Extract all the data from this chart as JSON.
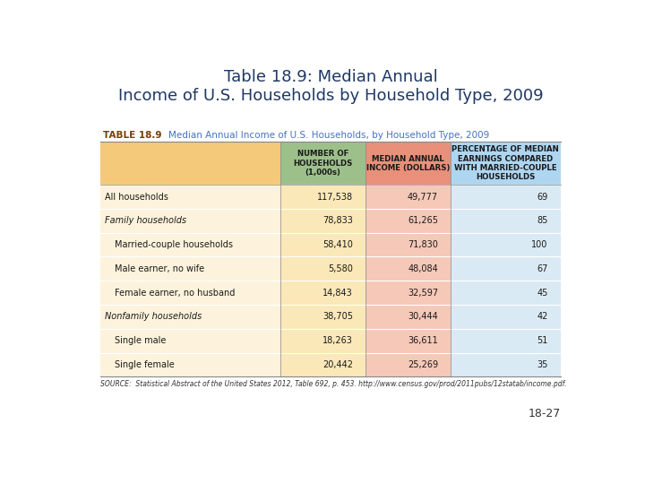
{
  "title_line1": "Table 18.9: Median Annual",
  "title_line2": "Income of U.S. Households by Household Type, 2009",
  "title_color": "#1F3864",
  "table_label_bold": "TABLE 18.9",
  "table_label_text_color": "#4472C4",
  "table_label_bold_color": "#7B3F00",
  "col_headers": [
    "",
    "NUMBER OF\nHOUSEHOLDS\n(1,000s)",
    "MEDIAN ANNUAL\nINCOME (DOLLARS)",
    "PERCENTAGE OF MEDIAN\nEARNINGS COMPARED\nWITH MARRIED-COUPLE\nHOUSEHOLDS"
  ],
  "col_header_bg_colors": [
    "#F5C97A",
    "#9DC08B",
    "#E8907A",
    "#AED6F1"
  ],
  "rows": [
    [
      "All households",
      "117,538",
      "49,777",
      "69"
    ],
    [
      "Family households",
      "78,833",
      "61,265",
      "85"
    ],
    [
      "  Married-couple households",
      "58,410",
      "71,830",
      "100"
    ],
    [
      "  Male earner, no wife",
      "5,580",
      "48,084",
      "67"
    ],
    [
      "  Female earner, no husband",
      "14,843",
      "32,597",
      "45"
    ],
    [
      "Nonfamily households",
      "38,705",
      "30,444",
      "42"
    ],
    [
      "  Single male",
      "18,263",
      "36,611",
      "51"
    ],
    [
      "  Single female",
      "20,442",
      "25,269",
      "35"
    ]
  ],
  "row_italic": [
    false,
    true,
    false,
    false,
    false,
    true,
    false,
    false
  ],
  "col_data_bg_colors": [
    "#FBE8B8",
    "#F5C8B8",
    "#DAEAF5"
  ],
  "source_text": "SOURCE:  Statistical Abstract of the United States 2012, Table 692, p. 453. http://www.census.gov/prod/2011pubs/12statab/income.pdf.",
  "page_number": "18-27",
  "bar_color_purple": "#7B2D8B",
  "bar_color_darkred": "#8B0000",
  "figsize": [
    7.2,
    5.4
  ],
  "dpi": 100
}
